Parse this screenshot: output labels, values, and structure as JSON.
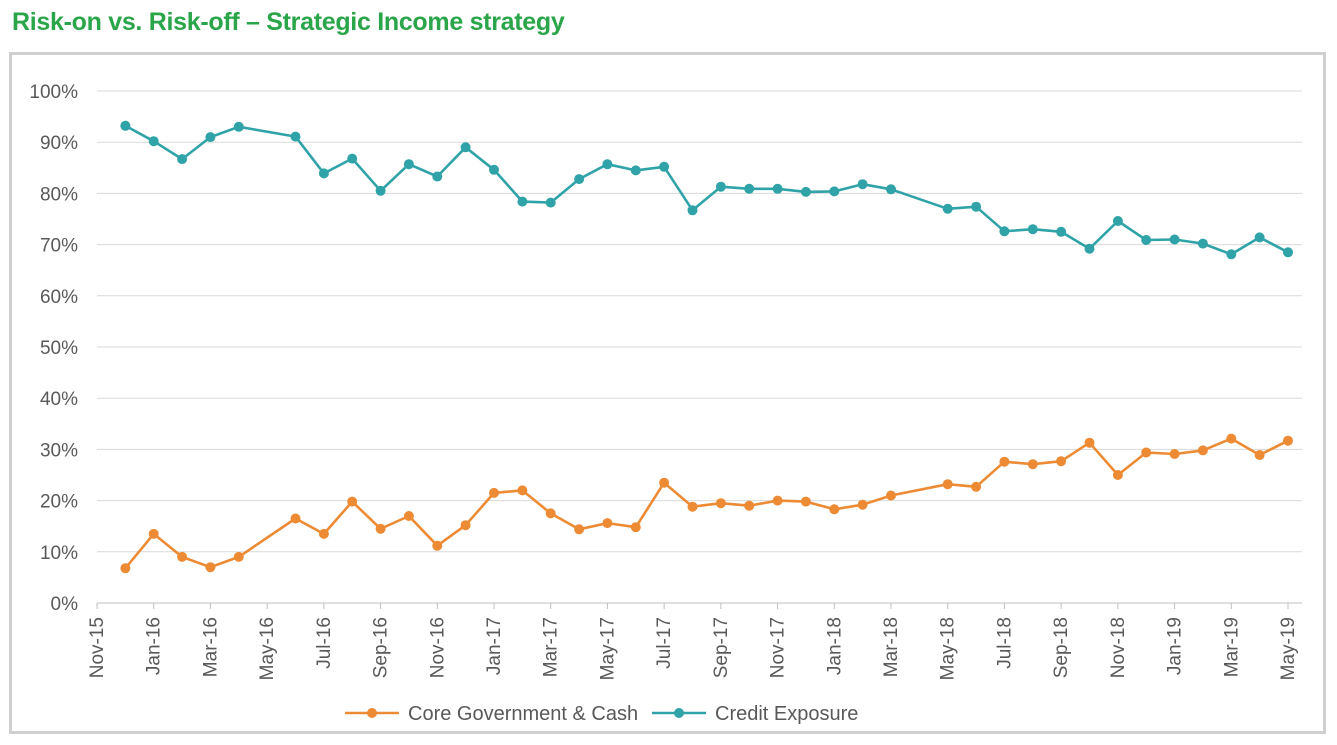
{
  "chart_data": {
    "type": "line",
    "title": "Risk-on vs. Risk-off – Strategic Income strategy",
    "xlabel": "",
    "ylabel": "",
    "ylim": [
      0,
      100
    ],
    "yticks": [
      "0%",
      "10%",
      "20%",
      "30%",
      "40%",
      "50%",
      "60%",
      "70%",
      "80%",
      "90%",
      "100%"
    ],
    "grid": true,
    "legend_position": "bottom",
    "x_tick_labels": [
      "Nov-15",
      "Jan-16",
      "Mar-16",
      "May-16",
      "Jul-16",
      "Sep-16",
      "Nov-16",
      "Jan-17",
      "Mar-17",
      "May-17",
      "Jul-17",
      "Sep-17",
      "Nov-17",
      "Jan-18",
      "Mar-18",
      "May-18",
      "Jul-18",
      "Sep-18",
      "Nov-18",
      "Jan-19",
      "Mar-19",
      "May-19"
    ],
    "x": [
      "Dec-15",
      "Jan-16",
      "Feb-16",
      "Mar-16",
      "Apr-16",
      "Jun-16",
      "Jul-16",
      "Aug-16",
      "Sep-16",
      "Oct-16",
      "Nov-16",
      "Dec-16",
      "Jan-17",
      "Feb-17",
      "Mar-17",
      "Apr-17",
      "May-17",
      "Jun-17",
      "Jul-17",
      "Aug-17",
      "Sep-17",
      "Oct-17",
      "Nov-17",
      "Dec-17",
      "Jan-18",
      "Feb-18",
      "Mar-18",
      "May-18",
      "Jun-18",
      "Jul-18",
      "Aug-18",
      "Sep-18",
      "Oct-18",
      "Nov-18",
      "Dec-18",
      "Jan-19",
      "Feb-19",
      "Mar-19",
      "Apr-19",
      "May-19"
    ],
    "series": [
      {
        "name": "Core Government & Cash",
        "color": "#ed8b35",
        "values": [
          6.8,
          13.5,
          9.0,
          7.0,
          9.0,
          16.5,
          13.5,
          19.8,
          14.5,
          17.0,
          11.2,
          15.2,
          21.5,
          22.0,
          17.5,
          14.4,
          15.6,
          14.8,
          23.5,
          18.8,
          19.5,
          19.0,
          20.0,
          19.8,
          18.3,
          19.2,
          21.0,
          23.2,
          22.7,
          27.6,
          27.1,
          27.7,
          31.3,
          25.0,
          29.4,
          29.1,
          29.8,
          32.1,
          28.9,
          31.7
        ]
      },
      {
        "name": "Credit Exposure",
        "color": "#2fa3a8",
        "values": [
          93.2,
          90.2,
          86.7,
          91.0,
          93.0,
          91.1,
          83.9,
          86.8,
          80.5,
          85.7,
          83.3,
          89.0,
          84.6,
          78.4,
          78.2,
          82.8,
          85.7,
          84.5,
          85.2,
          76.7,
          81.3,
          80.9,
          80.9,
          80.3,
          80.4,
          81.8,
          80.8,
          77.0,
          77.4,
          72.6,
          73.0,
          72.5,
          69.2,
          74.6,
          70.9,
          71.0,
          70.2,
          68.1,
          71.4,
          68.5
        ]
      }
    ]
  }
}
